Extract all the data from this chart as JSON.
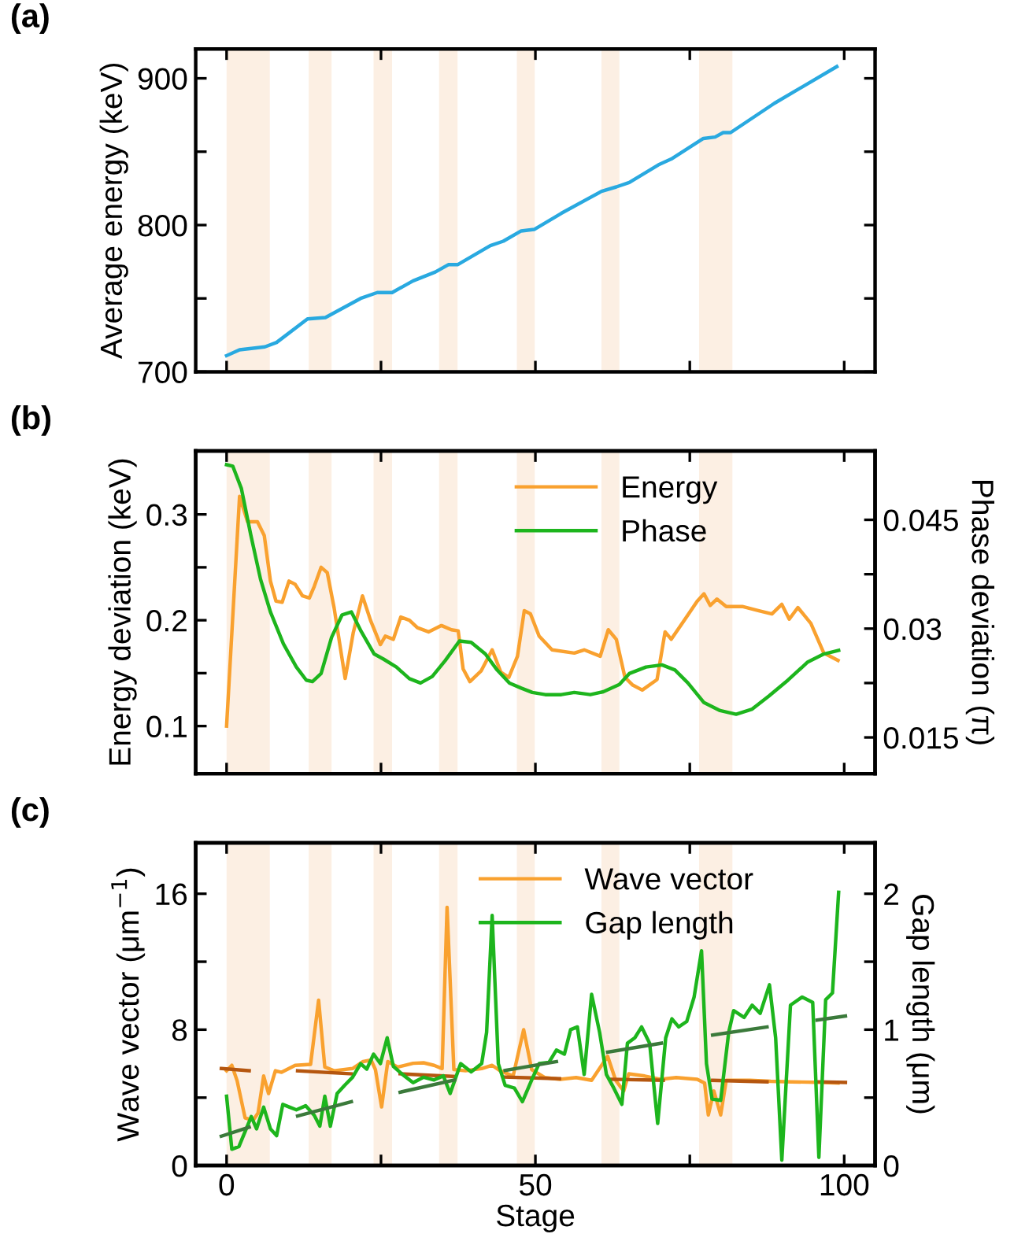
{
  "chart_data": [
    {
      "type": "line",
      "ylabel": "Average energy (keV)",
      "annotations": [
        "(a)"
      ],
      "xlim": [
        -5,
        105
      ],
      "xticks": [
        {
          "value": 0,
          "label": null
        },
        {
          "value": 25,
          "label": null
        },
        {
          "value": 50,
          "label": null
        },
        {
          "value": 75,
          "label": null
        },
        {
          "value": 100,
          "label": null
        }
      ],
      "ylim": [
        700,
        920
      ],
      "yticks": [
        700,
        {
          "value": 750,
          "label": null
        },
        800,
        {
          "value": 850,
          "label": null
        },
        900
      ],
      "tick_labels": "y",
      "grid": false,
      "legend": false,
      "bands": [
        {
          "axis": "x",
          "from": 0,
          "to": 7,
          "color": "#fcefe3"
        },
        {
          "axis": "x",
          "from": 13.3,
          "to": 17,
          "color": "#fcefe3"
        },
        {
          "axis": "x",
          "from": 23.8,
          "to": 26.8,
          "color": "#fcefe3"
        },
        {
          "axis": "x",
          "from": 34.4,
          "to": 37.4,
          "color": "#fcefe3"
        },
        {
          "axis": "x",
          "from": 47,
          "to": 49.9,
          "color": "#fcefe3"
        },
        {
          "axis": "x",
          "from": 60.7,
          "to": 63.6,
          "color": "#fcefe3"
        },
        {
          "axis": "x",
          "from": 76.5,
          "to": 81.9,
          "color": "#fcefe3"
        }
      ],
      "series": [
        {
          "color": "#29a9e0",
          "x": [
            0,
            2.1,
            6.2,
            8.1,
            13.1,
            16,
            21.7,
            24.4,
            26.8,
            30.2,
            33.8,
            35.9,
            37.4,
            42.7,
            44.8,
            47.7,
            49.8,
            54.2,
            60.7,
            63.1,
            65.2,
            69.9,
            72,
            77.2,
            79.1,
            80.4,
            81.6,
            88.7,
            98.8
          ],
          "values": [
            711,
            715,
            717,
            720,
            736,
            737,
            750,
            754,
            754,
            762,
            768,
            773,
            773,
            786,
            789,
            796,
            797,
            808,
            823,
            826,
            829,
            841,
            845,
            859,
            860,
            863,
            863,
            883,
            908
          ]
        }
      ]
    },
    {
      "type": "line",
      "ylabel": "Energy deviation (keV)",
      "y2label": "Phase deviation (π)",
      "annotations": [
        "(b)"
      ],
      "xlim": [
        -5,
        105
      ],
      "xticks": [
        {
          "value": 0,
          "label": null
        },
        {
          "value": 25,
          "label": null
        },
        {
          "value": 50,
          "label": null
        },
        {
          "value": 75,
          "label": null
        },
        {
          "value": 100,
          "label": null
        }
      ],
      "ylim": [
        0.055,
        0.36
      ],
      "yticks": [
        0.1,
        {
          "value": 0.15,
          "label": null
        },
        0.2,
        {
          "value": 0.25,
          "label": null
        },
        0.3
      ],
      "y2lim": [
        0.01,
        0.0545
      ],
      "y2ticks": [
        0.015,
        {
          "value": 0.0225,
          "label": null
        },
        0.03,
        {
          "value": 0.0375,
          "label": null
        },
        0.045
      ],
      "tick_labels": "y",
      "grid": false,
      "legend": "top",
      "bands": [
        {
          "axis": "x",
          "from": 0,
          "to": 7,
          "color": "#fcefe3"
        },
        {
          "axis": "x",
          "from": 13.3,
          "to": 17,
          "color": "#fcefe3"
        },
        {
          "axis": "x",
          "from": 23.8,
          "to": 26.8,
          "color": "#fcefe3"
        },
        {
          "axis": "x",
          "from": 34.4,
          "to": 37.4,
          "color": "#fcefe3"
        },
        {
          "axis": "x",
          "from": 47,
          "to": 49.9,
          "color": "#fcefe3"
        },
        {
          "axis": "x",
          "from": 60.7,
          "to": 63.6,
          "color": "#fcefe3"
        },
        {
          "axis": "x",
          "from": 76.5,
          "to": 81.9,
          "color": "#fcefe3"
        }
      ],
      "series": [
        {
          "name": "Energy",
          "color": "#f9a12f",
          "x": [
            0,
            2.1,
            3.4,
            5,
            6.1,
            7.1,
            8,
            9,
            10.1,
            11.1,
            12.3,
            13.4,
            14.2,
            15.3,
            16.3,
            17.4,
            19.2,
            20.5,
            22,
            23.3,
            24.9,
            25.7,
            27,
            28.2,
            29.6,
            30.9,
            32.7,
            34.8,
            36.4,
            37.5,
            38.3,
            39.4,
            41.2,
            43,
            44.4,
            45.7,
            47.1,
            48.2,
            49.2,
            50.6,
            52.7,
            56.3,
            57.9,
            60.5,
            61.8,
            63.1,
            64.5,
            65.7,
            67.3,
            69.7,
            71,
            72,
            74.1,
            76.2,
            77.3,
            78.3,
            79.4,
            80.9,
            83.5,
            86.2,
            88.3,
            89.9,
            91.1,
            92.5,
            94.6,
            96.7,
            99
          ],
          "values": [
            0.1,
            0.317,
            0.293,
            0.293,
            0.28,
            0.237,
            0.218,
            0.217,
            0.237,
            0.234,
            0.223,
            0.221,
            0.232,
            0.25,
            0.245,
            0.212,
            0.145,
            0.188,
            0.223,
            0.2,
            0.177,
            0.185,
            0.182,
            0.203,
            0.2,
            0.193,
            0.189,
            0.195,
            0.191,
            0.19,
            0.154,
            0.142,
            0.152,
            0.172,
            0.151,
            0.146,
            0.166,
            0.209,
            0.206,
            0.185,
            0.172,
            0.169,
            0.172,
            0.166,
            0.191,
            0.182,
            0.146,
            0.139,
            0.134,
            0.144,
            0.189,
            0.182,
            0.2,
            0.218,
            0.225,
            0.214,
            0.22,
            0.213,
            0.213,
            0.209,
            0.206,
            0.215,
            0.201,
            0.212,
            0.197,
            0.169,
            0.162
          ]
        },
        {
          "name": "Phase",
          "color": "#1db51d",
          "axis": "y2",
          "x": [
            0,
            1,
            2.4,
            3.9,
            5.5,
            7.1,
            9.2,
            11.3,
            12.9,
            13.9,
            15.3,
            17,
            18.7,
            20.2,
            21.8,
            23.9,
            25.4,
            27.5,
            29.6,
            31.4,
            33.3,
            35.4,
            37.7,
            39.6,
            41.9,
            43.8,
            45.8,
            47.7,
            49.5,
            51.6,
            54.2,
            56.3,
            58.9,
            61,
            63.6,
            65.2,
            67.9,
            70.5,
            72.6,
            74.7,
            77.3,
            79.9,
            82.5,
            85.1,
            87.8,
            90.9,
            94.1,
            96.7,
            99.1
          ],
          "values": [
            0.0526,
            0.0524,
            0.0493,
            0.043,
            0.0368,
            0.0323,
            0.0279,
            0.0247,
            0.0229,
            0.0227,
            0.0238,
            0.0288,
            0.0319,
            0.0323,
            0.0296,
            0.0265,
            0.0258,
            0.0247,
            0.0231,
            0.0225,
            0.0234,
            0.0256,
            0.0283,
            0.0281,
            0.0265,
            0.0243,
            0.0225,
            0.0218,
            0.0212,
            0.0209,
            0.0209,
            0.0212,
            0.0209,
            0.0213,
            0.0223,
            0.0238,
            0.0247,
            0.025,
            0.0243,
            0.0225,
            0.0198,
            0.0187,
            0.0182,
            0.0189,
            0.0207,
            0.0229,
            0.0254,
            0.0265,
            0.027
          ]
        }
      ]
    },
    {
      "type": "line",
      "xlabel": "Stage",
      "ylabel": "Wave vector (μm$^{−1}$)",
      "y2label": "Gap length (μm)",
      "annotations": [
        "(c)"
      ],
      "xlim": [
        -5,
        105
      ],
      "xticks": [
        0,
        {
          "value": 25,
          "label": null
        },
        50,
        {
          "value": 75,
          "label": null
        },
        100
      ],
      "ylim": [
        0,
        19
      ],
      "yticks": [
        0,
        {
          "value": 4,
          "label": null
        },
        8,
        {
          "value": 12,
          "label": null
        },
        16
      ],
      "y2lim": [
        0,
        2.375
      ],
      "y2ticks": [
        0,
        {
          "value": 0.5,
          "label": null
        },
        1,
        {
          "value": 1.5,
          "label": null
        },
        2
      ],
      "grid": false,
      "legend": "top",
      "bands": [
        {
          "axis": "x",
          "from": 0,
          "to": 7,
          "color": "#fcefe3"
        },
        {
          "axis": "x",
          "from": 13.3,
          "to": 17,
          "color": "#fcefe3"
        },
        {
          "axis": "x",
          "from": 23.8,
          "to": 26.8,
          "color": "#fcefe3"
        },
        {
          "axis": "x",
          "from": 34.4,
          "to": 37.4,
          "color": "#fcefe3"
        },
        {
          "axis": "x",
          "from": 47,
          "to": 49.9,
          "color": "#fcefe3"
        },
        {
          "axis": "x",
          "from": 60.7,
          "to": 63.6,
          "color": "#fcefe3"
        },
        {
          "axis": "x",
          "from": 76.5,
          "to": 81.9,
          "color": "#fcefe3"
        }
      ],
      "series": [
        {
          "name": "Wave vector",
          "color": "#f9a12f",
          "x": [
            0,
            0.85,
            1.7,
            3,
            4.3,
            5.1,
            6,
            6.8,
            7.9,
            8.9,
            11.1,
            13.6,
            14.9,
            15.9,
            17.4,
            20.4,
            22.1,
            23.4,
            24.1,
            25.1,
            26.1,
            27.7,
            30.2,
            31.9,
            33.6,
            34.9,
            35.7,
            36.8,
            38.7,
            41.3,
            43,
            44.3,
            46.4,
            48.1,
            49.4,
            51.5,
            54,
            56.6,
            59.1,
            61.7,
            63,
            64.3,
            65.1,
            67.7,
            70.2,
            72.8,
            76.2,
            77.4,
            78,
            78.9,
            80,
            80.9,
            84.7,
            88.1,
            91.5,
            96.6,
            99
          ],
          "values": [
            5.58,
            5.9,
            5.0,
            2.8,
            2.67,
            3.1,
            5.27,
            4.24,
            5.58,
            5.49,
            5.9,
            5.96,
            9.73,
            5.8,
            5.58,
            5.71,
            6.12,
            6.21,
            5.65,
            3.45,
            6.12,
            5.8,
            6.02,
            6.05,
            5.9,
            5.71,
            15.2,
            5.65,
            5.58,
            5.71,
            5.9,
            5.58,
            5.27,
            8.0,
            5.65,
            5.18,
            5.08,
            5.18,
            5.02,
            6.43,
            5.02,
            4.39,
            5.4,
            5.27,
            5.08,
            5.18,
            5.08,
            4.86,
            2.98,
            4.39,
            2.98,
            5.02,
            5.02,
            4.96,
            4.93,
            4.89,
            4.86
          ]
        },
        {
          "name": "Gap length",
          "color": "#1db51d",
          "axis": "y2",
          "x": [
            0,
            0.85,
            2,
            3,
            4,
            4.85,
            6,
            7.1,
            8.1,
            9.1,
            10.2,
            11.3,
            12.8,
            14.2,
            15.1,
            15.9,
            16.8,
            17.9,
            19.1,
            20.4,
            21.7,
            22.7,
            23.8,
            24.9,
            26,
            27,
            28.5,
            30.2,
            31.9,
            33.6,
            35.1,
            36.2,
            37.9,
            39.6,
            41.3,
            42.1,
            43,
            44,
            45.1,
            46.6,
            47.9,
            49.4,
            50.6,
            52.2,
            53.4,
            54.7,
            55.7,
            56.8,
            57.9,
            59.1,
            60.4,
            61.5,
            62.7,
            64,
            64.9,
            66.1,
            67.2,
            68.5,
            69.8,
            71.1,
            72.1,
            73.2,
            74.5,
            75.7,
            76.9,
            77.7,
            78.6,
            80,
            81.3,
            82.1,
            83.8,
            85.1,
            86.4,
            87.9,
            88.9,
            89.9,
            91.3,
            93.2,
            94.9,
            95.9,
            97,
            98.1,
            99.1
          ],
          "values": [
            0.51,
            0.12,
            0.14,
            0.25,
            0.36,
            0.27,
            0.43,
            0.27,
            0.22,
            0.45,
            0.43,
            0.41,
            0.44,
            0.37,
            0.29,
            0.51,
            0.29,
            0.53,
            0.59,
            0.65,
            0.75,
            0.71,
            0.82,
            0.75,
            0.94,
            0.73,
            0.67,
            0.61,
            0.65,
            0.63,
            0.66,
            0.53,
            0.75,
            0.69,
            0.75,
            0.98,
            1.84,
            0.75,
            0.59,
            0.57,
            0.47,
            0.63,
            0.75,
            0.76,
            0.85,
            0.82,
            1.0,
            1.02,
            0.67,
            1.26,
            0.98,
            0.67,
            0.57,
            0.45,
            0.9,
            0.94,
            1.02,
            0.9,
            0.31,
            0.94,
            1.08,
            1.02,
            1.06,
            1.24,
            1.58,
            0.75,
            0.49,
            0.48,
            0.98,
            1.14,
            1.09,
            1.18,
            1.12,
            1.33,
            0.94,
            0.04,
            1.18,
            1.24,
            1.2,
            0.06,
            1.22,
            1.27,
            2.01
          ]
        },
        {
          "color": "#b5560f",
          "x": [
            -0.85,
            3.66
          ],
          "values": [
            5.71,
            5.58
          ]
        },
        {
          "color": "#b5560f",
          "x": [
            11.5,
            20.2
          ],
          "values": [
            5.58,
            5.4
          ]
        },
        {
          "color": "#b5560f",
          "x": [
            28.1,
            36.9
          ],
          "values": [
            5.4,
            5.24
          ]
        },
        {
          "color": "#b5560f",
          "x": [
            45.1,
            53.9
          ],
          "values": [
            5.21,
            5.11
          ]
        },
        {
          "color": "#b5560f",
          "x": [
            62.1,
            70.7
          ],
          "values": [
            5.08,
            5.02
          ]
        },
        {
          "color": "#b5560f",
          "x": [
            78.7,
            87.5
          ],
          "values": [
            5.02,
            4.93
          ]
        },
        {
          "color": "#b5560f",
          "x": [
            95.6,
            100.2
          ],
          "values": [
            4.93,
            4.89
          ]
        },
        {
          "color": "#3b7a3b",
          "axis": "y2",
          "x": [
            -0.85,
            3.66
          ],
          "values": [
            0.216,
            0.282
          ]
        },
        {
          "color": "#3b7a3b",
          "axis": "y2",
          "x": [
            11.5,
            20.2
          ],
          "values": [
            0.365,
            0.47
          ]
        },
        {
          "color": "#3b7a3b",
          "axis": "y2",
          "x": [
            28.1,
            36.9
          ],
          "values": [
            0.54,
            0.63
          ]
        },
        {
          "color": "#3b7a3b",
          "axis": "y2",
          "x": [
            45.1,
            53.4
          ],
          "values": [
            0.7,
            0.765
          ]
        },
        {
          "color": "#3b7a3b",
          "axis": "y2",
          "x": [
            61.7,
            70.4
          ],
          "values": [
            0.835,
            0.9
          ]
        },
        {
          "color": "#3b7a3b",
          "axis": "y2",
          "x": [
            78.7,
            87.5
          ],
          "values": [
            0.96,
            1.02
          ]
        },
        {
          "color": "#3b7a3b",
          "axis": "y2",
          "x": [
            95.6,
            100.2
          ],
          "values": [
            1.07,
            1.1
          ]
        }
      ]
    }
  ]
}
